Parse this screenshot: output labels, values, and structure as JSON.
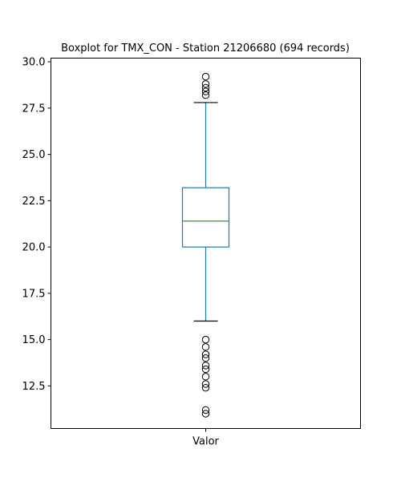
{
  "chart_data": {
    "type": "boxplot",
    "title": "Boxplot for TMX_CON - Station 21206680 (694 records)",
    "xlabel": "",
    "ylabel": "",
    "categories": [
      "Valor"
    ],
    "ylim": [
      10.2,
      30.2
    ],
    "yticks": [
      12.5,
      15.0,
      17.5,
      20.0,
      22.5,
      25.0,
      27.5,
      30.0
    ],
    "ytick_labels": [
      "12.5",
      "15.0",
      "17.5",
      "20.0",
      "22.5",
      "25.0",
      "27.5",
      "30.0"
    ],
    "grid": false,
    "boxes": [
      {
        "name": "Valor",
        "whisker_low": 16.0,
        "q1": 20.0,
        "median": 21.4,
        "q3": 23.2,
        "whisker_high": 27.8,
        "outliers": [
          11.0,
          11.2,
          12.4,
          12.6,
          13.0,
          13.4,
          13.6,
          14.0,
          14.2,
          14.6,
          15.0,
          28.2,
          28.4,
          28.6,
          28.8,
          29.2
        ]
      }
    ],
    "colors": {
      "box": "#1f77b4",
      "median": "#2ca02c",
      "whisker_cap": "#000000",
      "outlier": "#000000"
    }
  }
}
